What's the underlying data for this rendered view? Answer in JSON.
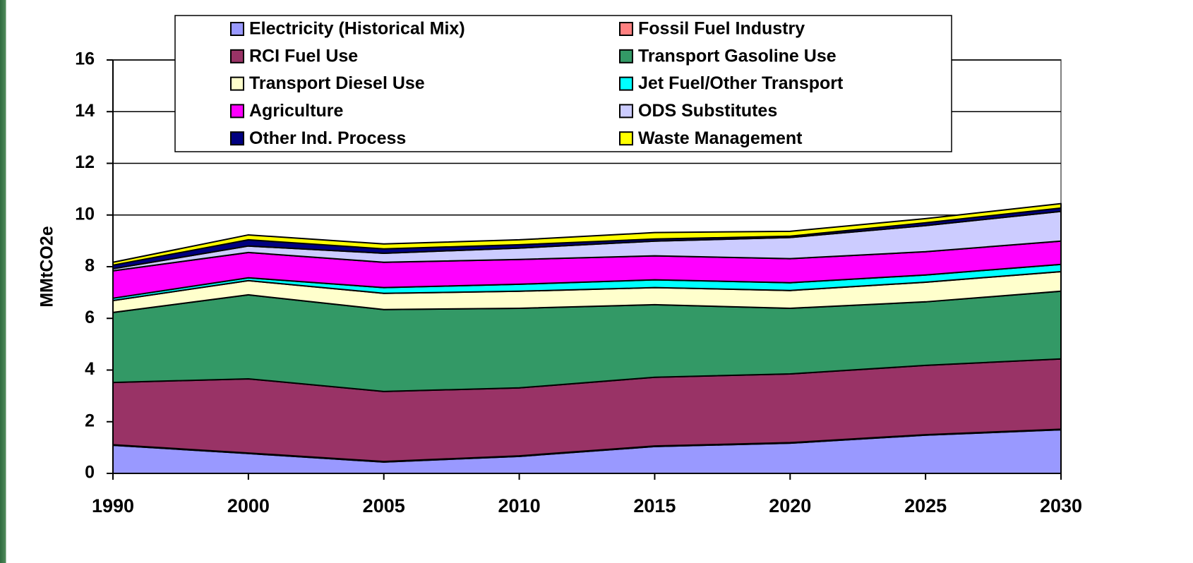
{
  "chart_data": {
    "type": "stacked_area",
    "ylabel": "MMtCO2e",
    "categories": [
      "1990",
      "2000",
      "2005",
      "2010",
      "2015",
      "2020",
      "2025",
      "2030"
    ],
    "ylim": [
      0,
      16
    ],
    "yticks": [
      0,
      2,
      4,
      6,
      8,
      10,
      12,
      14,
      16
    ],
    "grid": true,
    "series": [
      {
        "name": "Electricity (Historical Mix)",
        "color": "#9999ff",
        "values": [
          1.09,
          0.77,
          0.44,
          0.66,
          1.04,
          1.17,
          1.48,
          1.69
        ]
      },
      {
        "name": "Fossil Fuel Industry",
        "color": "#ff8080",
        "values": [
          0.02,
          0.02,
          0.02,
          0.02,
          0.02,
          0.02,
          0.02,
          0.02
        ]
      },
      {
        "name": "RCI Fuel Use",
        "color": "#993366",
        "values": [
          2.41,
          2.87,
          2.71,
          2.63,
          2.66,
          2.66,
          2.68,
          2.72
        ]
      },
      {
        "name": "Transport Gasoline Use",
        "color": "#339966",
        "values": [
          2.71,
          3.25,
          3.17,
          3.08,
          2.81,
          2.54,
          2.46,
          2.62
        ]
      },
      {
        "name": "Transport Diesel Use",
        "color": "#ffffcc",
        "values": [
          0.46,
          0.55,
          0.63,
          0.66,
          0.66,
          0.69,
          0.76,
          0.76
        ]
      },
      {
        "name": "Jet Fuel/Other Transport",
        "color": "#00ffff",
        "values": [
          0.09,
          0.11,
          0.22,
          0.27,
          0.3,
          0.3,
          0.28,
          0.28
        ]
      },
      {
        "name": "Agriculture",
        "color": "#ff00ff",
        "values": [
          1.06,
          0.98,
          0.98,
          0.96,
          0.93,
          0.93,
          0.9,
          0.9
        ]
      },
      {
        "name": "ODS Substitutes",
        "color": "#ccccff",
        "values": [
          0.08,
          0.25,
          0.35,
          0.44,
          0.57,
          0.82,
          1.01,
          1.15
        ]
      },
      {
        "name": "Other Ind. Process",
        "color": "#000080",
        "values": [
          0.14,
          0.24,
          0.17,
          0.13,
          0.08,
          0.05,
          0.11,
          0.13
        ]
      },
      {
        "name": "Waste Management",
        "color": "#ffff00",
        "values": [
          0.11,
          0.19,
          0.19,
          0.19,
          0.25,
          0.19,
          0.16,
          0.17
        ]
      }
    ]
  }
}
